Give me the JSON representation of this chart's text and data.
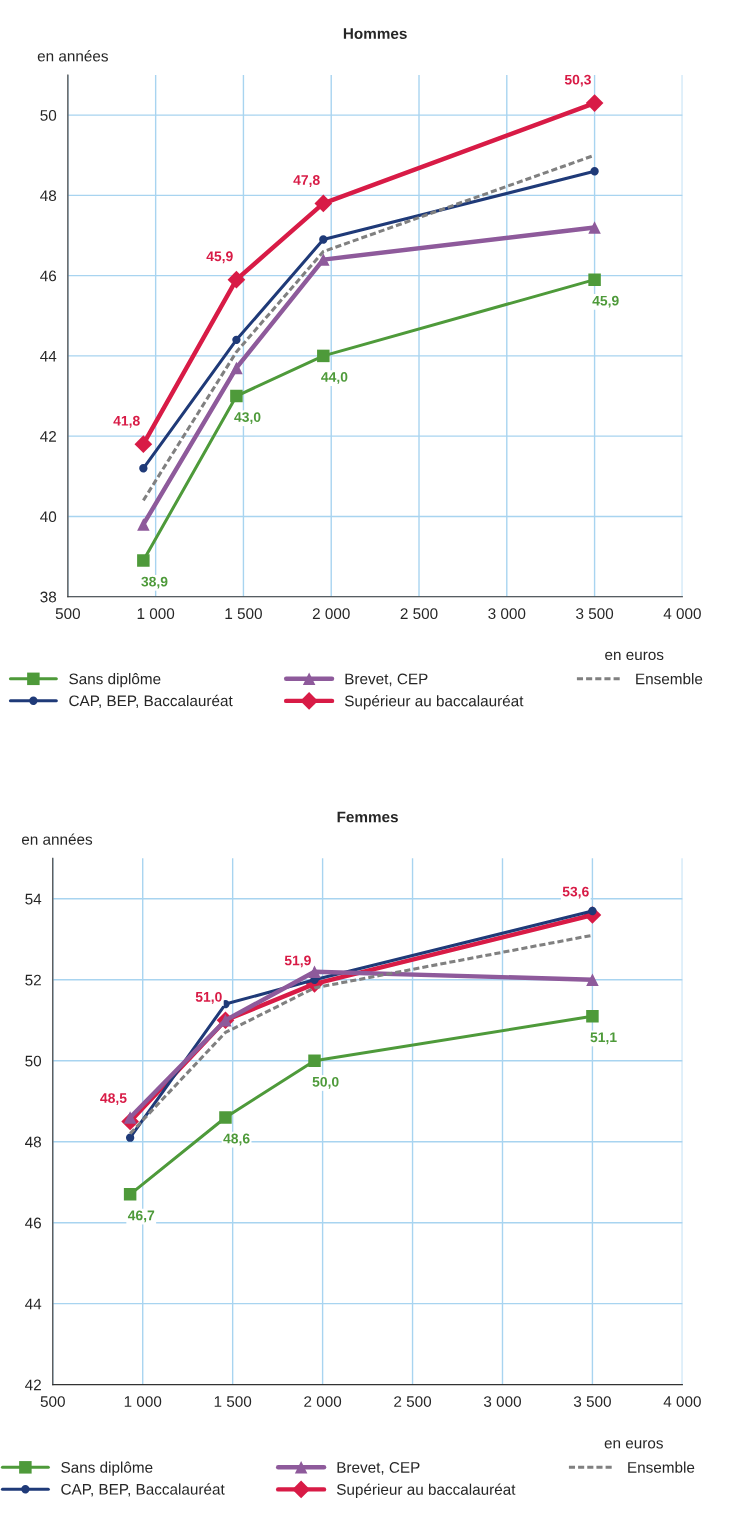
{
  "chart_data": [
    {
      "type": "line",
      "title": "Hommes",
      "ylabel": "en années",
      "xlabel": "en euros",
      "x": [
        930,
        1460,
        1955,
        3500
      ],
      "xlim": [
        500,
        4000
      ],
      "ylim": [
        38,
        51
      ],
      "xticks": [
        {
          "value": 500,
          "label": "500"
        },
        {
          "value": 1000,
          "label": "1 000"
        },
        {
          "value": 1500,
          "label": "1 500"
        },
        {
          "value": 2000,
          "label": "2 000"
        },
        {
          "value": 2500,
          "label": "2 500"
        },
        {
          "value": 3000,
          "label": "3 000"
        },
        {
          "value": 3500,
          "label": "3 500"
        },
        {
          "value": 4000,
          "label": "4 000"
        }
      ],
      "yticks": [
        38,
        40,
        42,
        44,
        46,
        48,
        50
      ],
      "grid": true,
      "legend": "bottom",
      "series": [
        {
          "name": "Sans diplôme",
          "color": "#4e9a3a",
          "marker": "square",
          "values": [
            38.9,
            43.0,
            44.0,
            45.9
          ],
          "value_labels": [
            "38,9",
            "43,0",
            "44,0",
            "45,9"
          ]
        },
        {
          "name": "CAP, BEP, Baccalauréat",
          "color": "#1f3a78",
          "marker": "circle",
          "values": [
            41.2,
            44.4,
            46.9,
            48.6
          ]
        },
        {
          "name": "Brevet, CEP",
          "color": "#8e5a9b",
          "marker": "triangle",
          "values": [
            39.8,
            43.7,
            46.4,
            47.2
          ]
        },
        {
          "name": "Supérieur au baccalauréat",
          "color": "#d81b46",
          "marker": "diamond",
          "values": [
            41.8,
            45.9,
            47.8,
            50.3
          ],
          "value_labels": [
            "41,8",
            "45,9",
            "47,8",
            "50,3"
          ]
        },
        {
          "name": "Ensemble",
          "color": "#808080",
          "marker": "none",
          "line_style": "dashed",
          "values": [
            40.4,
            44.1,
            46.6,
            49.0
          ]
        }
      ]
    },
    {
      "type": "line",
      "title": "Femmes",
      "ylabel": "en années",
      "xlabel": "en euros",
      "x": [
        930,
        1460,
        1955,
        3500
      ],
      "xlim": [
        500,
        4000
      ],
      "ylim": [
        42,
        55
      ],
      "xticks": [
        {
          "value": 500,
          "label": "500"
        },
        {
          "value": 1000,
          "label": "1 000"
        },
        {
          "value": 1500,
          "label": "1 500"
        },
        {
          "value": 2000,
          "label": "2 000"
        },
        {
          "value": 2500,
          "label": "2 500"
        },
        {
          "value": 3000,
          "label": "3 000"
        },
        {
          "value": 3500,
          "label": "3 500"
        },
        {
          "value": 4000,
          "label": "4 000"
        }
      ],
      "yticks": [
        42,
        44,
        46,
        48,
        50,
        52,
        54
      ],
      "grid": true,
      "legend": "bottom",
      "series": [
        {
          "name": "Sans diplôme",
          "color": "#4e9a3a",
          "marker": "square",
          "values": [
            46.7,
            48.6,
            50.0,
            51.1
          ],
          "value_labels": [
            "46,7",
            "48,6",
            "50,0",
            "51,1"
          ]
        },
        {
          "name": "CAP, BEP, Baccalauréat",
          "color": "#1f3a78",
          "marker": "circle",
          "values": [
            48.1,
            51.4,
            52.0,
            53.7
          ]
        },
        {
          "name": "Brevet, CEP",
          "color": "#8e5a9b",
          "marker": "triangle",
          "values": [
            48.6,
            51.0,
            52.2,
            52.0
          ]
        },
        {
          "name": "Supérieur au baccalauréat",
          "color": "#d81b46",
          "marker": "diamond",
          "values": [
            48.5,
            51.0,
            51.9,
            53.6
          ],
          "value_labels": [
            "48,5",
            "51,0",
            "51,9",
            "53,6"
          ]
        },
        {
          "name": "Ensemble",
          "color": "#808080",
          "marker": "none",
          "line_style": "dashed",
          "values": [
            48.2,
            50.7,
            51.8,
            53.1
          ]
        }
      ]
    }
  ]
}
